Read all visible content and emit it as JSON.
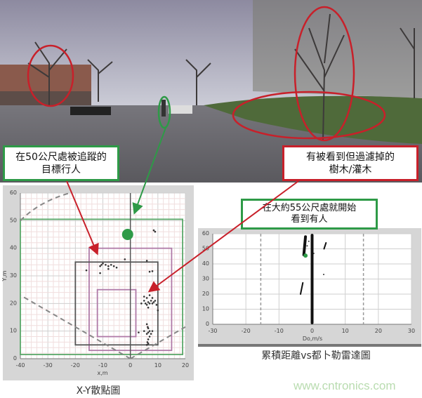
{
  "photo_annotations": {
    "pedestrian_label": [
      "在50公尺處被追蹤的",
      "目標行人"
    ],
    "trees_label": [
      "有被看到但過濾掉的",
      "樹木/灌木"
    ],
    "colors": {
      "green": "#2e9a47",
      "red": "#c8202a"
    }
  },
  "doppler_annotation": [
    "在大約55公尺處就開始",
    "看到有人"
  ],
  "captions": {
    "xy": "X-Y散點圖",
    "doppler": "累積距離vs都卜勒雷達圖"
  },
  "watermark": "www.cntronics.com",
  "chart_data": [
    {
      "type": "scatter",
      "title": "",
      "xlabel": "x,m",
      "ylabel": "Y,m",
      "xlim": [
        -40,
        20
      ],
      "ylim": [
        0,
        60
      ],
      "xticks": [
        "-40",
        "-30",
        "-20",
        "-10",
        "0",
        "10",
        "20"
      ],
      "yticks": [
        "0",
        "10",
        "20",
        "30",
        "40",
        "50",
        "60"
      ],
      "grid": true,
      "target": {
        "x": -1,
        "y": 45,
        "color": "#2e9a47"
      },
      "zones": [
        {
          "x": [
            -40,
            19
          ],
          "y": [
            1.5,
            50.5
          ],
          "color": "#5aa86a"
        },
        {
          "x": [
            -15,
            15
          ],
          "y": [
            3,
            40
          ],
          "color": "#b07aa8"
        },
        {
          "x": [
            -20,
            10
          ],
          "y": [
            5,
            35
          ],
          "color": "#555555"
        },
        {
          "x": [
            -12,
            2
          ],
          "y": [
            8,
            25
          ],
          "color": "#b07aa8"
        }
      ],
      "points": [
        [
          -16,
          32
        ],
        [
          -11,
          33.5
        ],
        [
          -10.5,
          34
        ],
        [
          -10,
          34.5
        ],
        [
          -9,
          34
        ],
        [
          -8,
          33.5
        ],
        [
          -7,
          34
        ],
        [
          -6,
          33.5
        ],
        [
          -5,
          33
        ],
        [
          -11,
          31
        ],
        [
          -8,
          32.5
        ],
        [
          -2,
          36
        ],
        [
          6,
          35.5
        ],
        [
          8.5,
          46.5
        ],
        [
          9,
          46
        ],
        [
          7,
          31.5
        ],
        [
          8,
          31.7
        ],
        [
          4,
          20
        ],
        [
          5,
          21
        ],
        [
          5.5,
          20
        ],
        [
          6,
          19.5
        ],
        [
          6.5,
          20.5
        ],
        [
          7,
          20
        ],
        [
          7.5,
          21
        ],
        [
          8,
          20
        ],
        [
          8.5,
          20.5
        ],
        [
          9,
          21
        ],
        [
          5,
          22.5
        ],
        [
          7,
          23
        ],
        [
          6,
          22
        ],
        [
          8,
          22
        ],
        [
          6.5,
          18.5
        ],
        [
          9.5,
          19.5
        ],
        [
          10,
          17.5
        ],
        [
          6,
          12.5
        ],
        [
          6.3,
          11.5
        ],
        [
          6.5,
          11
        ],
        [
          7,
          10
        ],
        [
          6.5,
          9.5
        ],
        [
          6,
          9
        ],
        [
          7,
          8
        ],
        [
          6.5,
          7
        ],
        [
          6.2,
          6
        ],
        [
          6.5,
          5.5
        ],
        [
          3,
          9.5
        ],
        [
          5,
          10
        ],
        [
          8,
          10
        ],
        [
          7.5,
          9
        ],
        [
          6,
          5
        ]
      ]
    },
    {
      "type": "scatter",
      "title": "",
      "xlabel": "Do,m/s",
      "ylabel": "Y",
      "xlim": [
        -30,
        30
      ],
      "ylim": [
        0,
        60
      ],
      "xticks": [
        "-30",
        "-20",
        "-10",
        "0",
        "10",
        "20",
        "30"
      ],
      "yticks": [
        "0",
        "10",
        "20",
        "30",
        "40",
        "50",
        "60"
      ],
      "grid": true,
      "limits": [
        -15.5,
        15.5
      ],
      "target": {
        "x": -2,
        "y": 45.5,
        "color": "#2e9a47"
      },
      "streaks": [
        {
          "x": [
            0,
            0
          ],
          "y": [
            1,
            59
          ],
          "weight": "heavy"
        },
        {
          "x": [
            -2.5,
            -2
          ],
          "y": [
            46,
            58
          ],
          "weight": "heavy"
        },
        {
          "x": [
            -3.5,
            -2.8
          ],
          "y": [
            20,
            27.5
          ],
          "weight": "light"
        },
        {
          "x": [
            3.6,
            4.2
          ],
          "y": [
            50,
            54
          ],
          "weight": "light"
        }
      ],
      "points": [
        [
          3.5,
          33
        ],
        [
          -1,
          55
        ],
        [
          -1.5,
          52
        ],
        [
          0.5,
          47
        ]
      ]
    }
  ]
}
